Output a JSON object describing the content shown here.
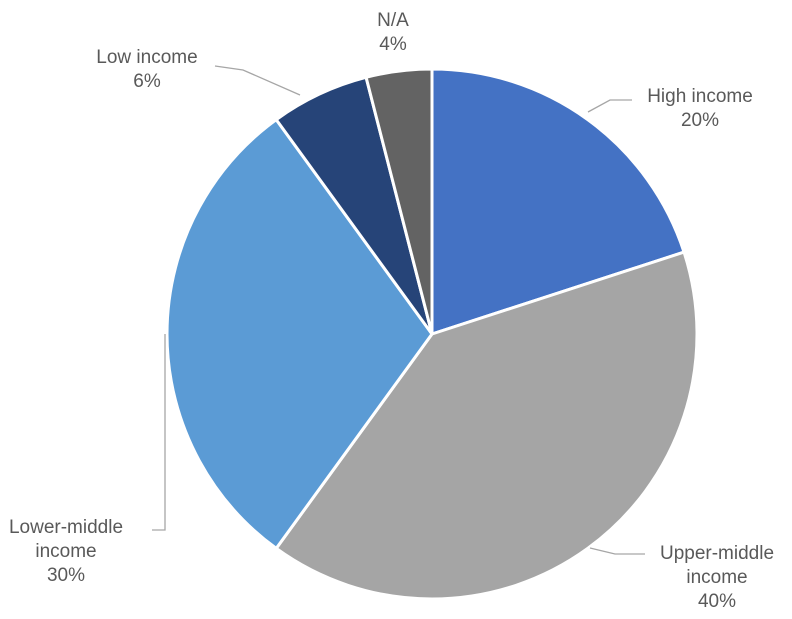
{
  "chart_data": {
    "type": "pie",
    "series": [
      {
        "values": [
          20,
          40,
          30,
          6,
          4
        ],
        "categories": [
          "High income",
          "Upper-middle income",
          "Lower-middle income",
          "Low income",
          "N/A"
        ]
      }
    ],
    "slices": [
      {
        "name_lines": [
          "High income"
        ],
        "pct": "20%",
        "value": 20,
        "color": "#4472c4"
      },
      {
        "name_lines": [
          "Upper-middle",
          "income"
        ],
        "pct": "40%",
        "value": 40,
        "color": "#a5a5a5"
      },
      {
        "name_lines": [
          "Lower-middle",
          "income"
        ],
        "pct": "30%",
        "value": 30,
        "color": "#5b9bd5"
      },
      {
        "name_lines": [
          "Low income"
        ],
        "pct": "6%",
        "value": 6,
        "color": "#264478"
      },
      {
        "name_lines": [
          "N/A"
        ],
        "pct": "4%",
        "value": 4,
        "color": "#636363"
      }
    ],
    "start_angle": "12 o'clock",
    "direction": "clockwise",
    "legend": "none",
    "data_labels": "category name and percentage, outside with leader lines"
  }
}
